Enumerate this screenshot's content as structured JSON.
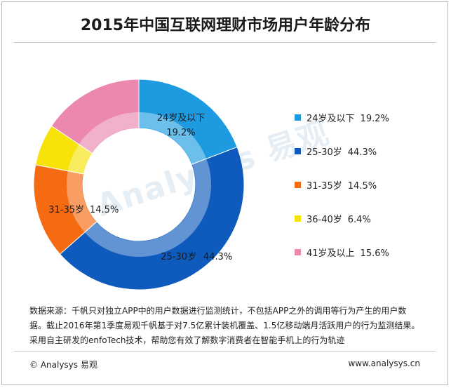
{
  "chart_data": {
    "type": "pie",
    "title": "2015年中国互联网理财市场用户年龄分布",
    "categories": [
      "24岁及以下",
      "25-30岁",
      "31-35岁",
      "36-40岁",
      "41岁及以上"
    ],
    "values": [
      19.2,
      44.3,
      14.5,
      6.4,
      15.6
    ],
    "value_labels": [
      "19.2%",
      "44.3%",
      "14.5%",
      "6.4%",
      "15.6%"
    ],
    "colors": [
      "#1e9be0",
      "#0f5bbd",
      "#f46b12",
      "#f7e20a",
      "#ec87ae"
    ],
    "style": "donut",
    "legend_position": "right",
    "slice_labels": [
      {
        "category": "24岁及以下",
        "value": "19.2%"
      },
      {
        "category": "25-30岁",
        "value": "44.3%"
      },
      {
        "category": "31-35岁",
        "value": "14.5%"
      }
    ]
  },
  "watermark": {
    "text": "Analysys 易观"
  },
  "note": "数据来源：千帆只对独立APP中的用户数据进行监测统计，不包括APP之外的调用等行为产生的用户数据。截止2016年第1季度易观千帆基于对7.5亿累计装机覆盖、1.5亿移动端月活跃用户的行为监测结果。采用自主研发的enfoTech技术，帮助您有效了解数字消费者在智能手机上的行为轨迹",
  "footer": {
    "left": "© Analysys 易观",
    "right": "www.analysys.cn"
  }
}
